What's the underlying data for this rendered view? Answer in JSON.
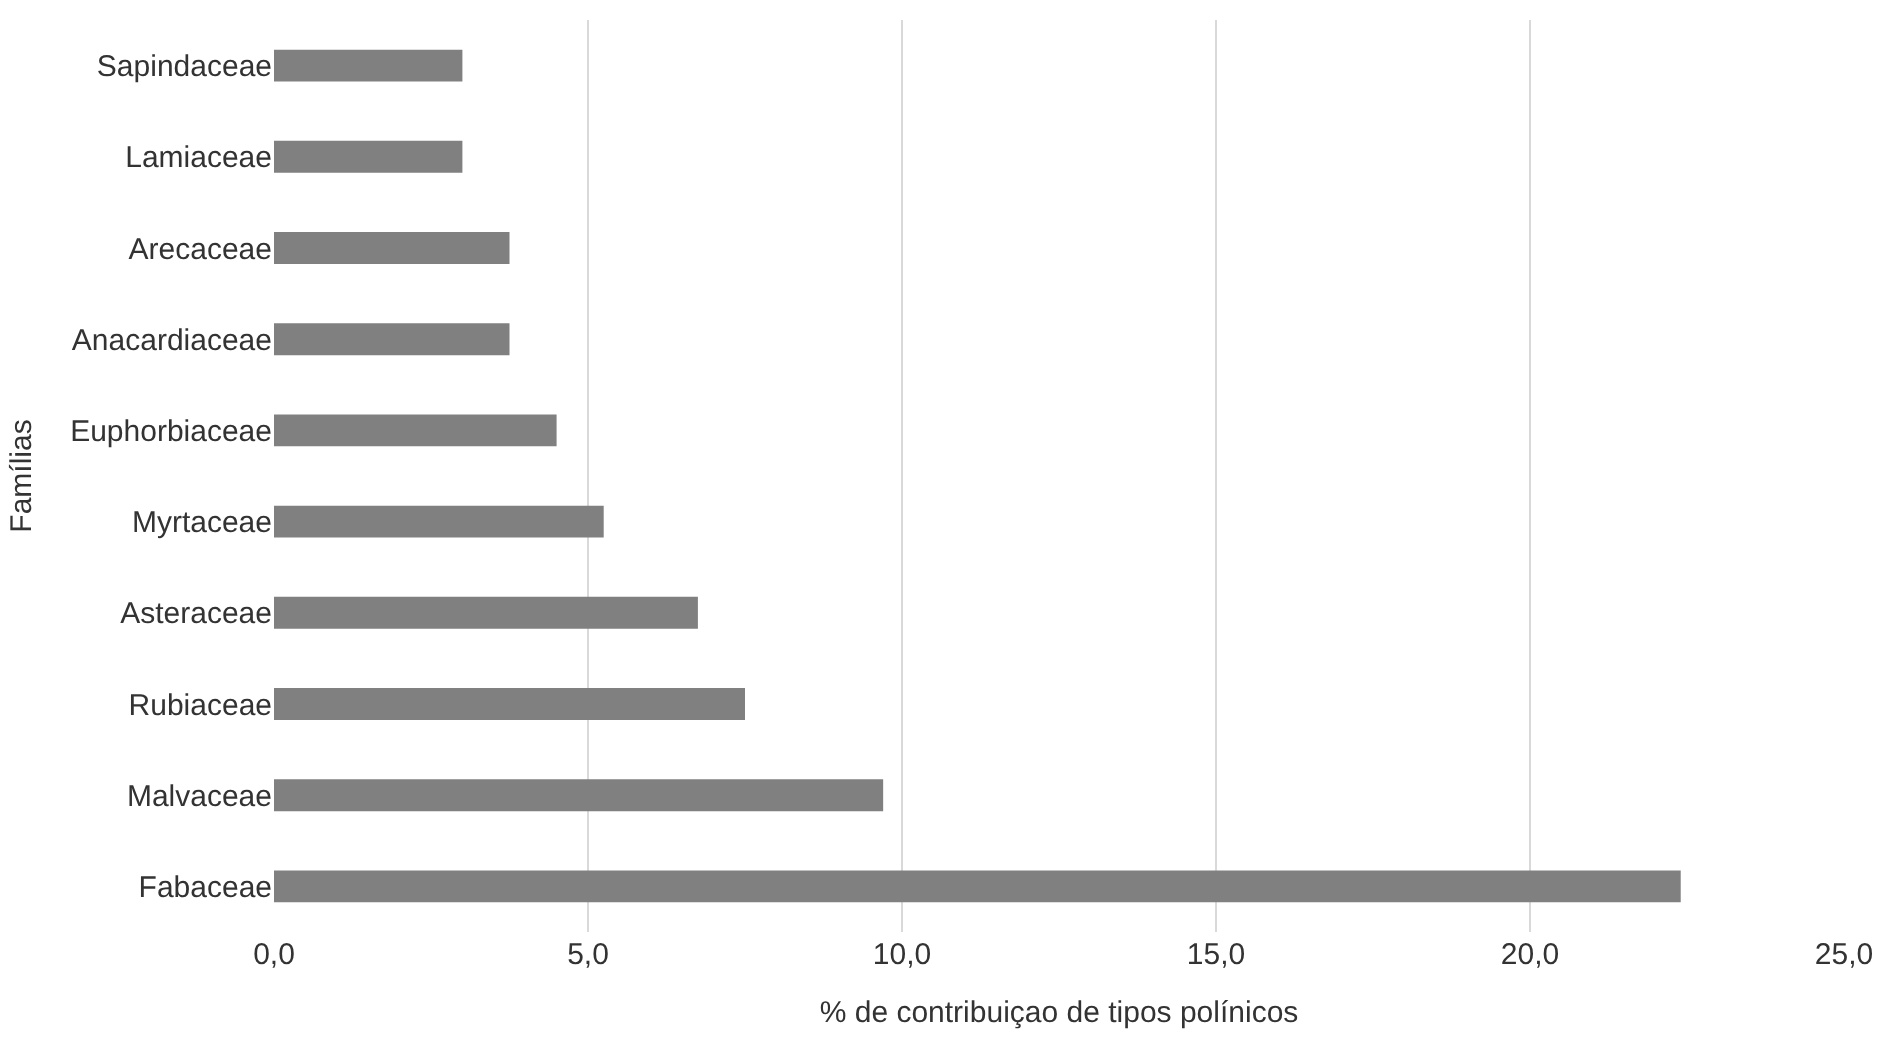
{
  "chart_data": {
    "type": "bar",
    "orientation": "horizontal",
    "xlabel": "% de contribuiçao de tipos polínicos",
    "ylabel": "Famílias",
    "categories": [
      "Sapindaceae",
      "Lamiaceae",
      "Arecaceae",
      "Anacardiaceae",
      "Euphorbiaceae",
      "Myrtaceae",
      "Asteraceae",
      "Rubiaceae",
      "Malvaceae",
      "Fabaceae"
    ],
    "values": [
      3.0,
      3.0,
      3.75,
      3.75,
      4.5,
      5.25,
      6.75,
      7.5,
      9.7,
      22.4
    ],
    "color": "#808080",
    "xlim": [
      0,
      25
    ],
    "xticks": [
      {
        "value": 0,
        "label": "0,0"
      },
      {
        "value": 5,
        "label": "5,0"
      },
      {
        "value": 10,
        "label": "10,0"
      },
      {
        "value": 15,
        "label": "15,0"
      },
      {
        "value": 20,
        "label": "20,0"
      },
      {
        "value": 25,
        "label": "25,0"
      }
    ],
    "grid": "x",
    "legend": false
  }
}
